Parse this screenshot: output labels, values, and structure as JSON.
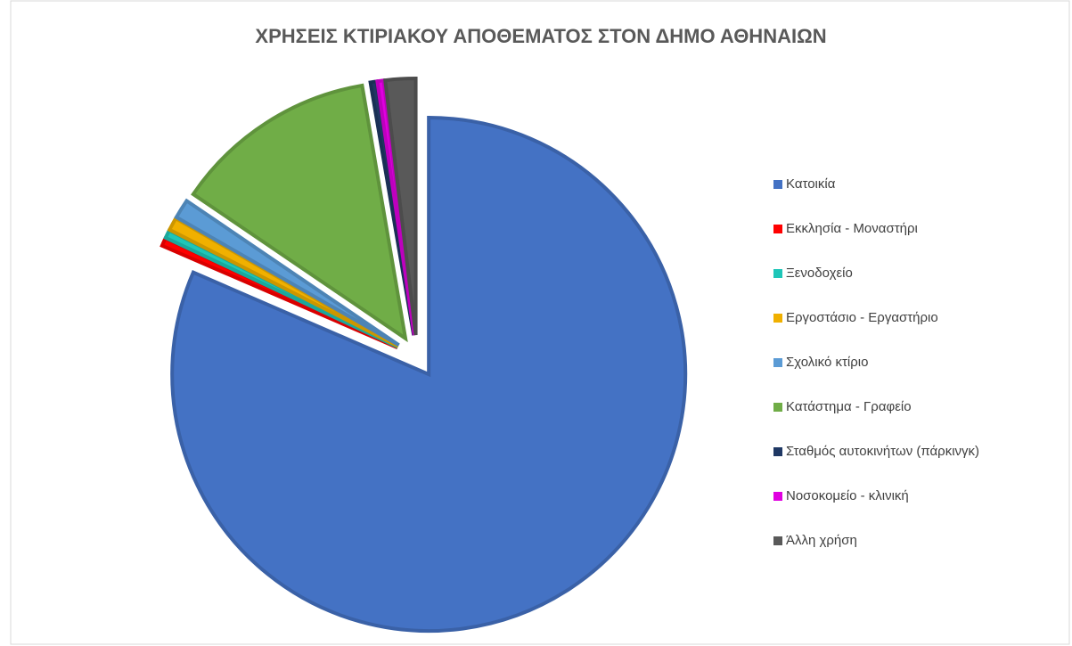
{
  "chart_data": {
    "type": "pie",
    "title": "ΧΡΗΣΕΙΣ ΚΤΙΡΙΑΚΟΥ ΑΠΟΘΕΜΑΤΟΣ ΣΤΟΝ ΔΗΜΟ ΑΘΗΝΑΙΩΝ",
    "categories": [
      "Κατοικία",
      "Εκκλησία - Μοναστήρι",
      "Ξενοδοχείο",
      "Εργοστάσιο - Εργαστήριο",
      "Σχολικό κτίριο",
      "Κατάστημα - Γραφείο",
      "Σταθμός αυτοκινήτων (πάρκινγκ)",
      "Νοσοκομείο - κλινική",
      "Άλλη χρήση"
    ],
    "values": [
      81.5,
      0.5,
      0.5,
      0.8,
      1.2,
      12.8,
      0.4,
      0.4,
      1.9
    ],
    "colors": [
      "#4472c4",
      "#ff0000",
      "#1fc6b8",
      "#f0b000",
      "#5b9bd5",
      "#70ad47",
      "#1f3864",
      "#e000e0",
      "#595959"
    ],
    "legend": "right"
  }
}
